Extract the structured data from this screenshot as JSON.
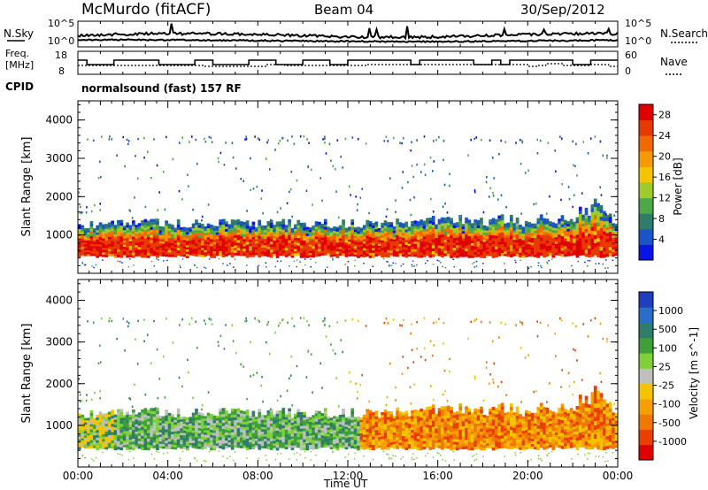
{
  "header": {
    "station": "McMurdo (fitACF)",
    "beam": "Beam 04",
    "date": "30/Sep/2012"
  },
  "noise_panel": {
    "left_label": "N.Sky",
    "right_label": "N.Search",
    "left_ticks": [
      "10^5",
      "10^0"
    ],
    "right_ticks": [
      "10^5",
      "10^0"
    ]
  },
  "freq_panel": {
    "left_label_1": "Freq.",
    "left_label_2": "[MHz]",
    "left_ticks": [
      "18",
      "8"
    ],
    "right_label": "Nave",
    "right_ticks": [
      "60",
      "0"
    ]
  },
  "cpid": {
    "label": "CPID",
    "text": "normalsound (fast) 157 RF"
  },
  "chart_data": [
    {
      "type": "heatmap",
      "name": "Power",
      "xlabel": "",
      "ylabel": "Slant Range [km]",
      "xlim": [
        "00:00",
        "24:00"
      ],
      "ylim": [
        0,
        4500
      ],
      "yticks": [
        "1000",
        "2000",
        "3000",
        "4000"
      ],
      "colorbar": {
        "label": "Power [dB]",
        "ticks": [
          "4",
          "8",
          "12",
          "16",
          "20",
          "24",
          "28"
        ],
        "colors": [
          "#0a14e6",
          "#1a55c8",
          "#2e7d6a",
          "#4fa847",
          "#9ecb2a",
          "#f5c400",
          "#f59a00",
          "#f06a00",
          "#e83a00",
          "#e00000"
        ]
      },
      "echo_band_km": {
        "lower": 400,
        "upper_typical": 1300
      },
      "scattered_echo_range_km": [
        3400,
        3600
      ]
    },
    {
      "type": "heatmap",
      "name": "Velocity",
      "xlabel": "Time UT",
      "ylabel": "Slant Range [km]",
      "xlim": [
        "00:00",
        "24:00"
      ],
      "ylim": [
        0,
        4500
      ],
      "yticks": [
        "1000",
        "2000",
        "3000",
        "4000"
      ],
      "xticks": [
        "00:00",
        "04:00",
        "08:00",
        "12:00",
        "16:00",
        "20:00",
        "00:00"
      ],
      "colorbar": {
        "label": "Velocity [m s^-1]",
        "ticks": [
          "1000",
          "500",
          "100",
          "25",
          "-25",
          "-100",
          "-500",
          "-1000"
        ],
        "colors": [
          "#1f3fbf",
          "#2a6ec9",
          "#2e7d6a",
          "#3fa03a",
          "#7fd03a",
          "#bfbfbf",
          "#f5c400",
          "#f5a000",
          "#f07800",
          "#e84000",
          "#e00000"
        ]
      },
      "dominant_velocity_00_12": "green / grey (-25 to 100)",
      "dominant_velocity_12_24": "orange (-100 to -500)"
    }
  ],
  "colors": {
    "axis": "#000000",
    "background": "#ffffff"
  }
}
